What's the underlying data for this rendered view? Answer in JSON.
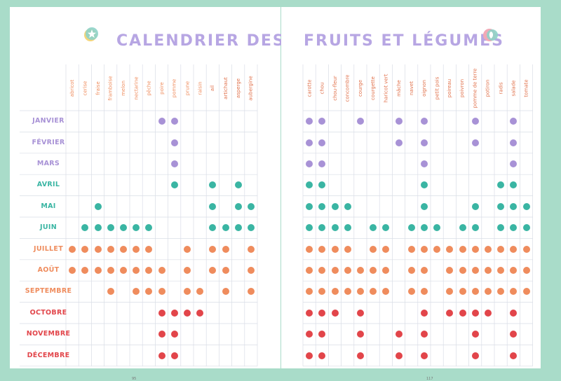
{
  "title": {
    "left": "CALENDRIER DES",
    "right": "FRUITS ET LÉGUMES"
  },
  "months": [
    "JANVIER",
    "FÉVRIER",
    "MARS",
    "AVRIL",
    "MAI",
    "JUIN",
    "JUILLET",
    "AOÛT",
    "SEPTEMBRE",
    "OCTOBRE",
    "NOVEMBRE",
    "DÉCEMBRE"
  ],
  "fruits": [
    "abricot",
    "cerise",
    "fraise",
    "framboise",
    "melon",
    "nectarine",
    "pêche",
    "poire",
    "pomme",
    "prune",
    "raisin"
  ],
  "vegetables_left": [
    "ail",
    "artichaut",
    "asperge",
    "aubergine"
  ],
  "vegetables_right": [
    "carotte",
    "chou",
    "chou-fleur",
    "concombre",
    "courge",
    "courgette",
    "haricot vert",
    "mâche",
    "navet",
    "oignon",
    "petit pois",
    "poireau",
    "poivron",
    "pomme de terre",
    "potiron",
    "radis",
    "salade",
    "tomate"
  ],
  "season_colors": [
    "#a892d6",
    "#a892d6",
    "#a892d6",
    "#3ab5a3",
    "#3ab5a3",
    "#3ab5a3",
    "#ef8c5d",
    "#ef8c5d",
    "#ef8c5d",
    "#e2454a",
    "#e2454a",
    "#e2454a"
  ],
  "marks_left": [
    [
      7,
      8
    ],
    [
      8
    ],
    [
      8
    ],
    [
      8,
      11,
      13
    ],
    [
      2,
      11,
      13,
      14
    ],
    [
      1,
      2,
      3,
      4,
      5,
      6,
      11,
      12,
      13,
      14
    ],
    [
      0,
      1,
      2,
      3,
      4,
      5,
      6,
      9,
      11,
      12,
      14
    ],
    [
      0,
      1,
      2,
      3,
      4,
      5,
      6,
      7,
      9,
      11,
      12,
      14
    ],
    [
      3,
      5,
      6,
      7,
      9,
      10,
      12,
      14
    ],
    [
      7,
      8,
      9,
      10
    ],
    [
      7,
      8
    ],
    [
      7,
      8
    ]
  ],
  "marks_right": [
    [
      0,
      1,
      4,
      7,
      9,
      13,
      16
    ],
    [
      0,
      1,
      7,
      9,
      13,
      16
    ],
    [
      0,
      1,
      9,
      16
    ],
    [
      0,
      1,
      9,
      15,
      16
    ],
    [
      0,
      1,
      2,
      3,
      9,
      13,
      15,
      16,
      17
    ],
    [
      0,
      1,
      2,
      3,
      5,
      6,
      8,
      9,
      10,
      12,
      13,
      15,
      16,
      17
    ],
    [
      0,
      1,
      2,
      3,
      5,
      6,
      8,
      9,
      10,
      11,
      12,
      13,
      14,
      15,
      16,
      17
    ],
    [
      0,
      1,
      2,
      3,
      4,
      5,
      6,
      8,
      9,
      11,
      12,
      13,
      14,
      15,
      16,
      17
    ],
    [
      0,
      1,
      2,
      3,
      4,
      5,
      6,
      8,
      9,
      11,
      12,
      13,
      14,
      15,
      16,
      17
    ],
    [
      0,
      1,
      2,
      4,
      9,
      11,
      12,
      13,
      14,
      16
    ],
    [
      0,
      1,
      4,
      7,
      9,
      13,
      16
    ],
    [
      0,
      1,
      4,
      7,
      9,
      13,
      16
    ]
  ],
  "page_numbers": {
    "left": "95",
    "right": "117"
  }
}
